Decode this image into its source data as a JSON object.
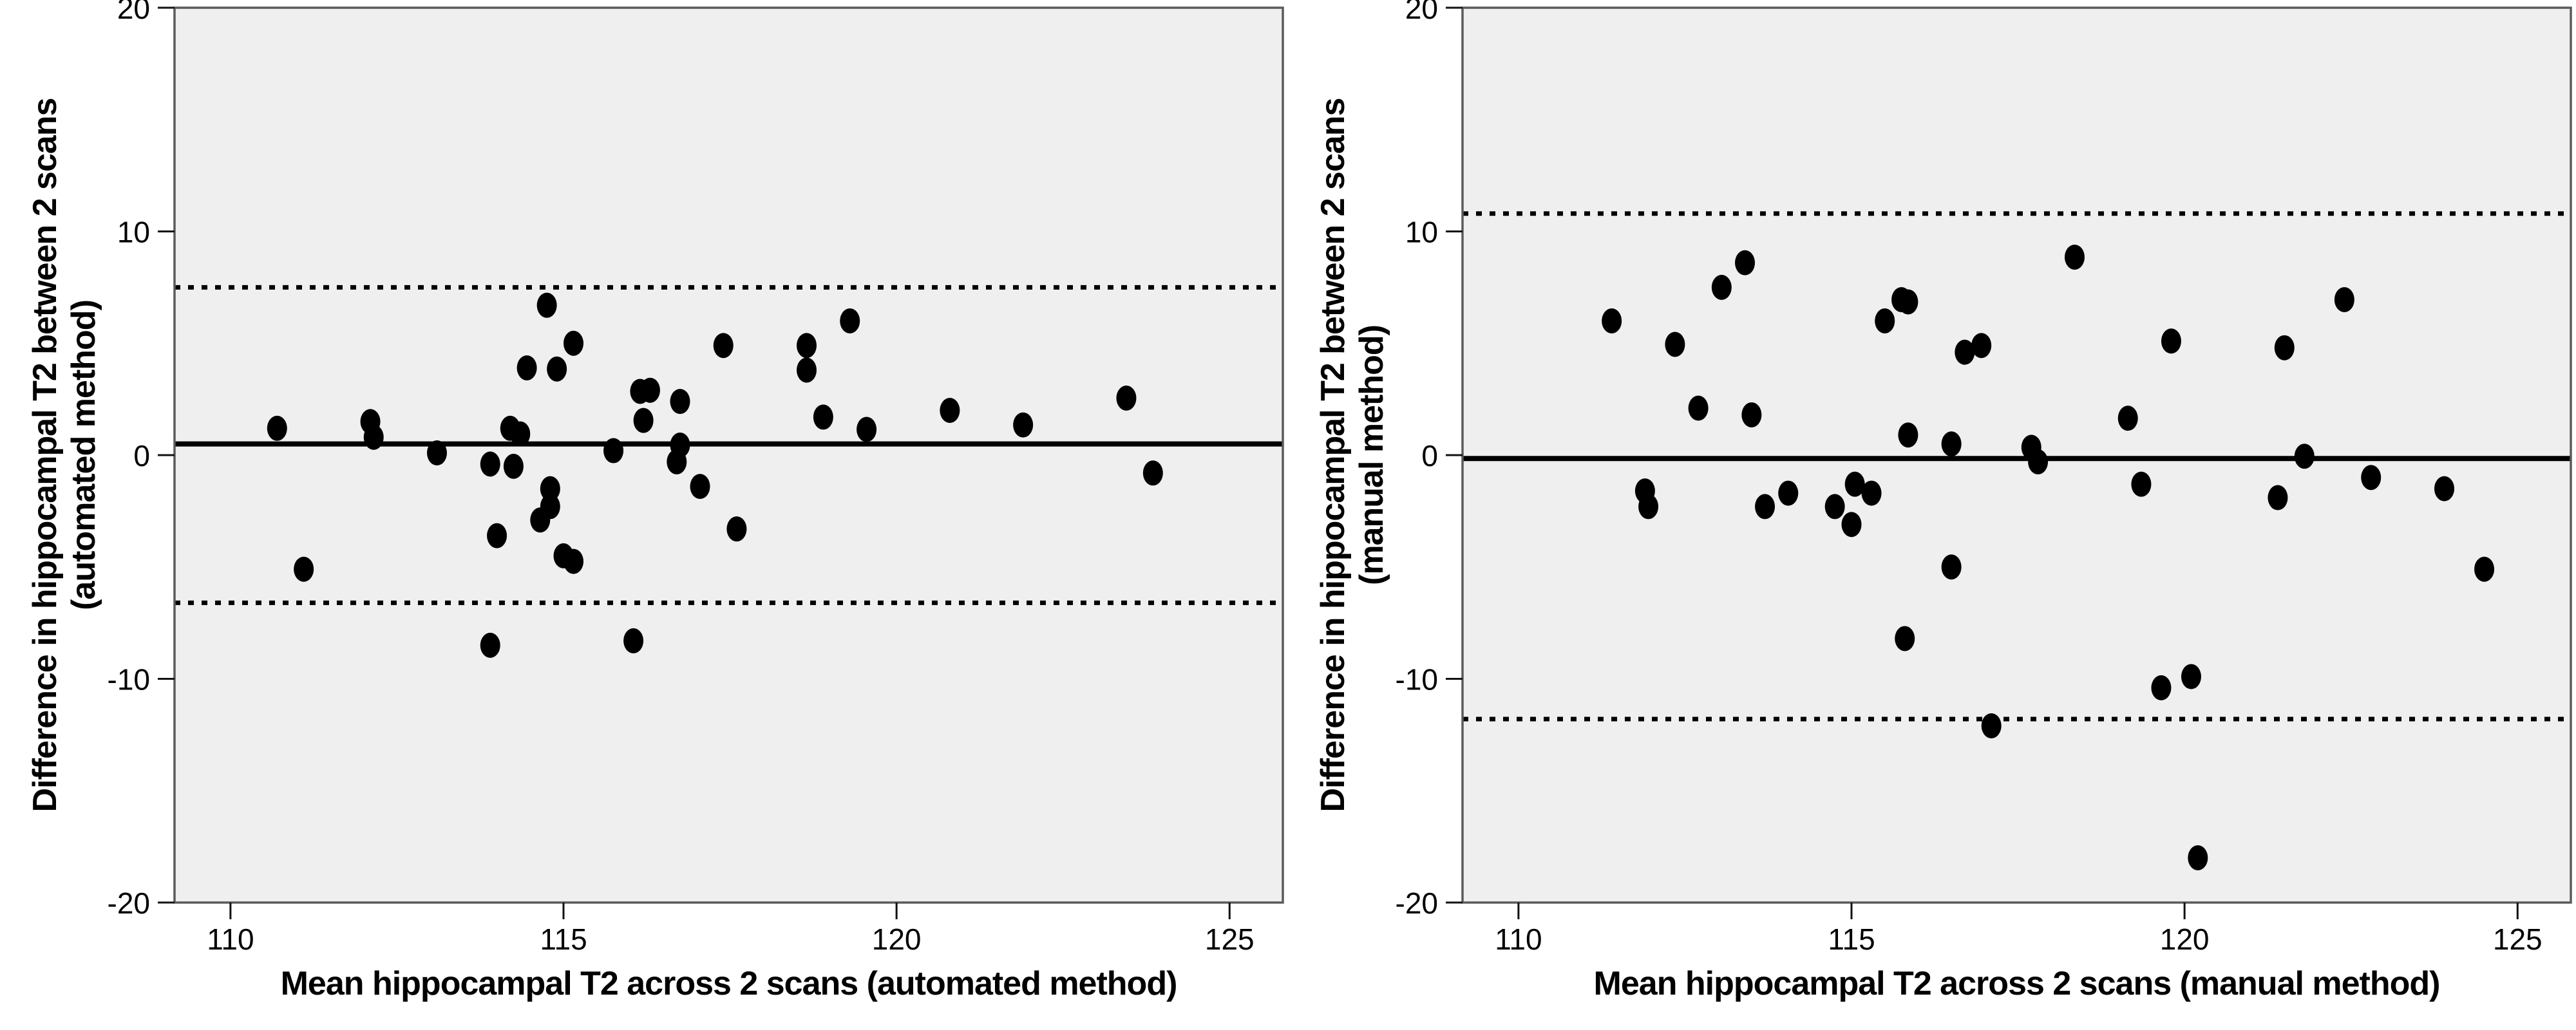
{
  "figure": {
    "background": "#ffffff",
    "plot_background": "#efefef",
    "frame_color": "#5a5a5a",
    "tick_color": "#111111",
    "point_color": "#000000",
    "line_color": "#000000"
  },
  "chart_data": [
    {
      "type": "scatter",
      "panel": "automated",
      "xlabel": "Mean hippocampal T2 across 2 scans (automated method)",
      "ylabel_line1": "Difference in hippocampal T2 between 2 scans",
      "ylabel_line2": "(automated method)",
      "xlim": [
        109.16,
        125.8
      ],
      "ylim": [
        -20,
        20
      ],
      "xticks": [
        110,
        115,
        120,
        125
      ],
      "yticks": [
        20,
        10,
        0,
        -10,
        -20
      ],
      "grid": false,
      "legend": "none",
      "mean_line": 0.5,
      "upper_loa": 7.5,
      "lower_loa": -6.6,
      "points": [
        [
          110.7,
          1.2
        ],
        [
          111.1,
          -5.1
        ],
        [
          112.1,
          1.5
        ],
        [
          112.15,
          0.8
        ],
        [
          113.1,
          0.1
        ],
        [
          113.9,
          -0.4
        ],
        [
          114.25,
          -0.5
        ],
        [
          114.0,
          -3.6
        ],
        [
          114.2,
          1.2
        ],
        [
          114.35,
          0.95
        ],
        [
          114.45,
          3.9
        ],
        [
          114.75,
          6.7
        ],
        [
          114.9,
          3.85
        ],
        [
          115.15,
          5.0
        ],
        [
          114.8,
          -1.5
        ],
        [
          114.8,
          -2.3
        ],
        [
          114.65,
          -2.9
        ],
        [
          115.0,
          -4.5
        ],
        [
          115.15,
          -4.75
        ],
        [
          113.9,
          -8.5
        ],
        [
          116.05,
          -8.3
        ],
        [
          115.75,
          0.2
        ],
        [
          116.15,
          2.85
        ],
        [
          116.3,
          2.9
        ],
        [
          116.2,
          1.55
        ],
        [
          116.75,
          2.4
        ],
        [
          116.75,
          0.45
        ],
        [
          116.7,
          -0.3
        ],
        [
          117.05,
          -1.4
        ],
        [
          117.6,
          -3.3
        ],
        [
          117.4,
          4.9
        ],
        [
          118.65,
          4.9
        ],
        [
          118.65,
          3.8
        ],
        [
          119.3,
          6.0
        ],
        [
          118.9,
          1.7
        ],
        [
          119.55,
          1.15
        ],
        [
          120.8,
          2.0
        ],
        [
          121.9,
          1.35
        ],
        [
          123.45,
          2.55
        ],
        [
          123.85,
          -0.8
        ]
      ]
    },
    {
      "type": "scatter",
      "panel": "manual",
      "xlabel": "Mean hippocampal T2 across 2 scans (manual method)",
      "ylabel_line1": "Difference in hippocampal T2 between 2 scans",
      "ylabel_line2": "(manual method)",
      "xlim": [
        109.16,
        125.8
      ],
      "ylim": [
        -20,
        20
      ],
      "xticks": [
        110,
        115,
        120,
        125
      ],
      "yticks": [
        20,
        10,
        0,
        -10,
        -20
      ],
      "grid": false,
      "legend": "none",
      "mean_line": -0.15,
      "upper_loa": 10.8,
      "lower_loa": -11.8,
      "points": [
        [
          111.4,
          6.0
        ],
        [
          111.9,
          -1.6
        ],
        [
          111.95,
          -2.3
        ],
        [
          112.35,
          4.95
        ],
        [
          112.7,
          2.1
        ],
        [
          113.05,
          7.5
        ],
        [
          113.4,
          8.6
        ],
        [
          113.5,
          1.8
        ],
        [
          113.7,
          -2.3
        ],
        [
          114.05,
          -1.7
        ],
        [
          114.75,
          -2.3
        ],
        [
          115.0,
          -3.1
        ],
        [
          115.05,
          -1.3
        ],
        [
          115.3,
          -1.7
        ],
        [
          115.5,
          6.0
        ],
        [
          115.75,
          6.95
        ],
        [
          115.85,
          6.85
        ],
        [
          115.85,
          0.9
        ],
        [
          115.8,
          -8.2
        ],
        [
          116.5,
          0.5
        ],
        [
          116.5,
          -5.0
        ],
        [
          116.7,
          4.6
        ],
        [
          116.95,
          4.9
        ],
        [
          117.1,
          -12.1
        ],
        [
          117.7,
          0.35
        ],
        [
          117.8,
          -0.3
        ],
        [
          118.35,
          8.85
        ],
        [
          119.15,
          1.65
        ],
        [
          119.35,
          -1.3
        ],
        [
          119.65,
          -10.4
        ],
        [
          119.8,
          5.1
        ],
        [
          120.1,
          -9.9
        ],
        [
          120.2,
          -18.0
        ],
        [
          121.4,
          -1.9
        ],
        [
          121.5,
          4.8
        ],
        [
          121.8,
          -0.05
        ],
        [
          122.4,
          6.95
        ],
        [
          122.8,
          -1.0
        ],
        [
          123.9,
          -1.5
        ],
        [
          124.5,
          -5.1
        ]
      ]
    }
  ]
}
